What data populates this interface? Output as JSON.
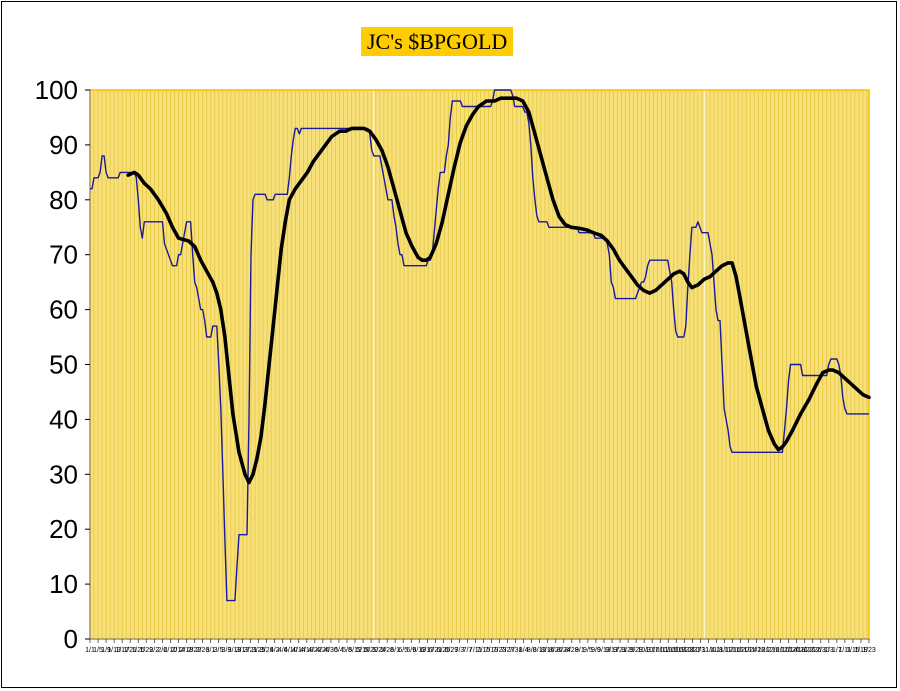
{
  "chart_data": {
    "type": "line",
    "title": "JC's $BPGOLD",
    "xlabel": "",
    "ylabel": "",
    "ylim": [
      0,
      100
    ],
    "yticks": [
      0,
      10,
      20,
      30,
      40,
      50,
      60,
      70,
      80,
      90,
      100
    ],
    "grid": "vertical",
    "legend": "none",
    "colors": {
      "plot_background": "#f7e07a",
      "plot_border": "#f2c200",
      "grid": "#e2c43a",
      "title_background": "#ffcc00",
      "index_line": "#1a1a99",
      "average_line": "#000000"
    },
    "x_tick_labels": [
      "1/1",
      "1/5",
      "1/9",
      "1/13",
      "1/17",
      "1/21",
      "1/25",
      "1/29",
      "2/2",
      "2/6",
      "2/10",
      "2/14",
      "2/18",
      "2/22",
      "2/26",
      "3/1",
      "3/5",
      "3/9",
      "3/13",
      "3/17",
      "3/21",
      "3/25",
      "3/29",
      "4/2",
      "4/6",
      "4/10",
      "4/14",
      "4/18",
      "4/22",
      "4/26",
      "4/30",
      "5/4",
      "5/8",
      "5/12",
      "5/16",
      "5/20",
      "5/24",
      "5/28",
      "6/1",
      "6/5",
      "6/9",
      "6/13",
      "6/17",
      "6/21",
      "6/25",
      "6/29",
      "7/3",
      "7/7",
      "7/11",
      "7/15",
      "7/19",
      "7/23",
      "7/27",
      "7/31",
      "8/4",
      "8/8",
      "8/12",
      "8/16",
      "8/20",
      "8/24",
      "8/28",
      "9/1",
      "9/5",
      "9/9",
      "9/13",
      "9/17",
      "9/21",
      "9/25",
      "9/29",
      "10/3",
      "10/7",
      "10/11",
      "10/15",
      "10/19",
      "10/23",
      "10/27",
      "10/31",
      "11/4",
      "11/8",
      "11/12",
      "11/16",
      "11/20",
      "11/24",
      "11/28",
      "12/2",
      "12/6",
      "12/10",
      "12/14",
      "12/18",
      "12/22",
      "12/26",
      "12/30",
      "1/3",
      "1/7",
      "1/11",
      "1/15",
      "1/19",
      "1/23"
    ],
    "x_range": [
      0,
      387
    ],
    "series": [
      {
        "points": [
          [
            0,
            82
          ],
          [
            1,
            82
          ],
          [
            2,
            84
          ],
          [
            4,
            84
          ],
          [
            5,
            85
          ],
          [
            6,
            88
          ],
          [
            7,
            88
          ],
          [
            8,
            85
          ],
          [
            9,
            84
          ],
          [
            14,
            84
          ],
          [
            15,
            85
          ],
          [
            19,
            85
          ],
          [
            22,
            85
          ],
          [
            23,
            84
          ],
          [
            24,
            80
          ],
          [
            25,
            75
          ],
          [
            26,
            73
          ],
          [
            27,
            76
          ],
          [
            36,
            76
          ],
          [
            37,
            72
          ],
          [
            39,
            70
          ],
          [
            40,
            69
          ],
          [
            41,
            68
          ],
          [
            43,
            68
          ],
          [
            44,
            70
          ],
          [
            45,
            70
          ],
          [
            46,
            72
          ],
          [
            47,
            74
          ],
          [
            48,
            76
          ],
          [
            50,
            76
          ],
          [
            51,
            70
          ],
          [
            52,
            65
          ],
          [
            53,
            64
          ],
          [
            54,
            62
          ],
          [
            55,
            60
          ],
          [
            56,
            60
          ],
          [
            57,
            58
          ],
          [
            58,
            55
          ],
          [
            60,
            55
          ],
          [
            61,
            57
          ],
          [
            63,
            57
          ],
          [
            64,
            50
          ],
          [
            65,
            42
          ],
          [
            66,
            30
          ],
          [
            67,
            18
          ],
          [
            68,
            7
          ],
          [
            72,
            7
          ],
          [
            73,
            13
          ],
          [
            74,
            19
          ],
          [
            78,
            19
          ],
          [
            79,
            40
          ],
          [
            80,
            70
          ],
          [
            81,
            80
          ],
          [
            82,
            81
          ],
          [
            87,
            81
          ],
          [
            88,
            80
          ],
          [
            91,
            80
          ],
          [
            92,
            81
          ],
          [
            98,
            81
          ],
          [
            99,
            84
          ],
          [
            100,
            88
          ],
          [
            101,
            91
          ],
          [
            102,
            93
          ],
          [
            103,
            93
          ],
          [
            104,
            92
          ],
          [
            105,
            93
          ],
          [
            125,
            93
          ],
          [
            138,
            93
          ],
          [
            139,
            92
          ],
          [
            140,
            89
          ],
          [
            141,
            88
          ],
          [
            144,
            88
          ],
          [
            145,
            86
          ],
          [
            146,
            84
          ],
          [
            147,
            82
          ],
          [
            148,
            80
          ],
          [
            150,
            80
          ],
          [
            151,
            77
          ],
          [
            152,
            75
          ],
          [
            153,
            72
          ],
          [
            154,
            70
          ],
          [
            155,
            70
          ],
          [
            156,
            68
          ],
          [
            167,
            68
          ],
          [
            168,
            69
          ],
          [
            169,
            69
          ],
          [
            170,
            70
          ],
          [
            171,
            74
          ],
          [
            172,
            78
          ],
          [
            173,
            82
          ],
          [
            174,
            85
          ],
          [
            176,
            85
          ],
          [
            177,
            88
          ],
          [
            178,
            90
          ],
          [
            179,
            95
          ],
          [
            180,
            98
          ],
          [
            184,
            98
          ],
          [
            185,
            97
          ],
          [
            199,
            97
          ],
          [
            200,
            98
          ],
          [
            201,
            100
          ],
          [
            209,
            100
          ],
          [
            210,
            99
          ],
          [
            211,
            97
          ],
          [
            215,
            97
          ],
          [
            216,
            96
          ],
          [
            217,
            96
          ],
          [
            218,
            94
          ],
          [
            219,
            90
          ],
          [
            220,
            84
          ],
          [
            221,
            80
          ],
          [
            222,
            77
          ],
          [
            223,
            76
          ],
          [
            227,
            76
          ],
          [
            228,
            75
          ],
          [
            242,
            75
          ],
          [
            243,
            74
          ],
          [
            250,
            74
          ],
          [
            251,
            73
          ],
          [
            256,
            73
          ],
          [
            257,
            72
          ],
          [
            258,
            70
          ],
          [
            259,
            65
          ],
          [
            260,
            64
          ],
          [
            261,
            62
          ],
          [
            266,
            62
          ],
          [
            269,
            62
          ],
          [
            270,
            62
          ],
          [
            271,
            62
          ],
          [
            272,
            63
          ],
          [
            273,
            64
          ],
          [
            274,
            65
          ],
          [
            275,
            65
          ],
          [
            276,
            66
          ],
          [
            277,
            68
          ],
          [
            278,
            69
          ],
          [
            283,
            69
          ],
          [
            287,
            69
          ],
          [
            288,
            67
          ],
          [
            289,
            65
          ],
          [
            290,
            60
          ],
          [
            291,
            56
          ],
          [
            292,
            55
          ],
          [
            295,
            55
          ],
          [
            296,
            57
          ],
          [
            297,
            64
          ],
          [
            298,
            70
          ],
          [
            299,
            75
          ],
          [
            301,
            75
          ],
          [
            302,
            76
          ],
          [
            303,
            75
          ],
          [
            304,
            74
          ],
          [
            307,
            74
          ],
          [
            308,
            72
          ],
          [
            309,
            70
          ],
          [
            310,
            65
          ],
          [
            311,
            60
          ],
          [
            312,
            58
          ],
          [
            313,
            58
          ],
          [
            314,
            50
          ],
          [
            315,
            42
          ],
          [
            316,
            40
          ],
          [
            317,
            38
          ],
          [
            318,
            35
          ],
          [
            319,
            34
          ],
          [
            344,
            34
          ],
          [
            345,
            38
          ],
          [
            346,
            42
          ],
          [
            347,
            47
          ],
          [
            348,
            50
          ],
          [
            353,
            50
          ],
          [
            354,
            48
          ],
          [
            366,
            48
          ],
          [
            367,
            50
          ],
          [
            368,
            51
          ],
          [
            371,
            51
          ],
          [
            372,
            50
          ],
          [
            373,
            48
          ],
          [
            374,
            44
          ],
          [
            375,
            42
          ],
          [
            376,
            41
          ],
          [
            383,
            41
          ],
          [
            387,
            41
          ]
        ]
      },
      {
        "points": [
          [
            19,
            84.5
          ],
          [
            22,
            85
          ],
          [
            24,
            84.5
          ],
          [
            27,
            83
          ],
          [
            30,
            82
          ],
          [
            34,
            80
          ],
          [
            38,
            77.5
          ],
          [
            41,
            75
          ],
          [
            44,
            73
          ],
          [
            49,
            72.5
          ],
          [
            52,
            71.5
          ],
          [
            55,
            69
          ],
          [
            58,
            67
          ],
          [
            61,
            65
          ],
          [
            63,
            63
          ],
          [
            65,
            60
          ],
          [
            67,
            55
          ],
          [
            69,
            48
          ],
          [
            71,
            41
          ],
          [
            74,
            34
          ],
          [
            77,
            30
          ],
          [
            79,
            28.5
          ],
          [
            81,
            30
          ],
          [
            83,
            33
          ],
          [
            85,
            37
          ],
          [
            87,
            43
          ],
          [
            89,
            50
          ],
          [
            91,
            57
          ],
          [
            93,
            64
          ],
          [
            95,
            71
          ],
          [
            97,
            76
          ],
          [
            99,
            80
          ],
          [
            102,
            82
          ],
          [
            105,
            83.5
          ],
          [
            108,
            85
          ],
          [
            111,
            87
          ],
          [
            114,
            88.5
          ],
          [
            117,
            90
          ],
          [
            120,
            91.5
          ],
          [
            124,
            92.5
          ],
          [
            127,
            92.5
          ],
          [
            130,
            93
          ],
          [
            136,
            93
          ],
          [
            139,
            92.5
          ],
          [
            142,
            91
          ],
          [
            145,
            89
          ],
          [
            148,
            86
          ],
          [
            151,
            82
          ],
          [
            154,
            78
          ],
          [
            157,
            74
          ],
          [
            160,
            71.5
          ],
          [
            163,
            69.5
          ],
          [
            165,
            69
          ],
          [
            167,
            69
          ],
          [
            169,
            69.5
          ],
          [
            172,
            72
          ],
          [
            175,
            76
          ],
          [
            178,
            81
          ],
          [
            181,
            86
          ],
          [
            184,
            90.5
          ],
          [
            187,
            93.5
          ],
          [
            190,
            95.5
          ],
          [
            193,
            97
          ],
          [
            197,
            98
          ],
          [
            201,
            98
          ],
          [
            204,
            98.5
          ],
          [
            208,
            98.5
          ],
          [
            212,
            98.5
          ],
          [
            215,
            98
          ],
          [
            218,
            96
          ],
          [
            221,
            92
          ],
          [
            224,
            88
          ],
          [
            227,
            84
          ],
          [
            230,
            80
          ],
          [
            233,
            77
          ],
          [
            236,
            75.5
          ],
          [
            239,
            75
          ],
          [
            243,
            74.8
          ],
          [
            247,
            74.5
          ],
          [
            250,
            74
          ],
          [
            254,
            73.5
          ],
          [
            257,
            72.5
          ],
          [
            260,
            71
          ],
          [
            263,
            69
          ],
          [
            266,
            67.5
          ],
          [
            269,
            66
          ],
          [
            272,
            64.5
          ],
          [
            275,
            63.5
          ],
          [
            278,
            63
          ],
          [
            281,
            63.5
          ],
          [
            284,
            64.5
          ],
          [
            287,
            65.5
          ],
          [
            290,
            66.5
          ],
          [
            293,
            67
          ],
          [
            295,
            66.5
          ],
          [
            297,
            65
          ],
          [
            299,
            64
          ],
          [
            302,
            64.5
          ],
          [
            305,
            65.5
          ],
          [
            308,
            66
          ],
          [
            311,
            67
          ],
          [
            314,
            68
          ],
          [
            317,
            68.5
          ],
          [
            319,
            68.5
          ],
          [
            321,
            66
          ],
          [
            323,
            62
          ],
          [
            325,
            58
          ],
          [
            328,
            52
          ],
          [
            331,
            46
          ],
          [
            334,
            42
          ],
          [
            337,
            38
          ],
          [
            340,
            35.5
          ],
          [
            342,
            34.5
          ],
          [
            344,
            35
          ],
          [
            346,
            36
          ],
          [
            349,
            38
          ],
          [
            353,
            41
          ],
          [
            357,
            43.5
          ],
          [
            361,
            46.5
          ],
          [
            364,
            48.5
          ],
          [
            367,
            49
          ],
          [
            369,
            49
          ],
          [
            372,
            48.5
          ],
          [
            375,
            47.5
          ],
          [
            378,
            46.5
          ],
          [
            381,
            45.5
          ],
          [
            384,
            44.5
          ],
          [
            387,
            44
          ]
        ]
      }
    ]
  }
}
